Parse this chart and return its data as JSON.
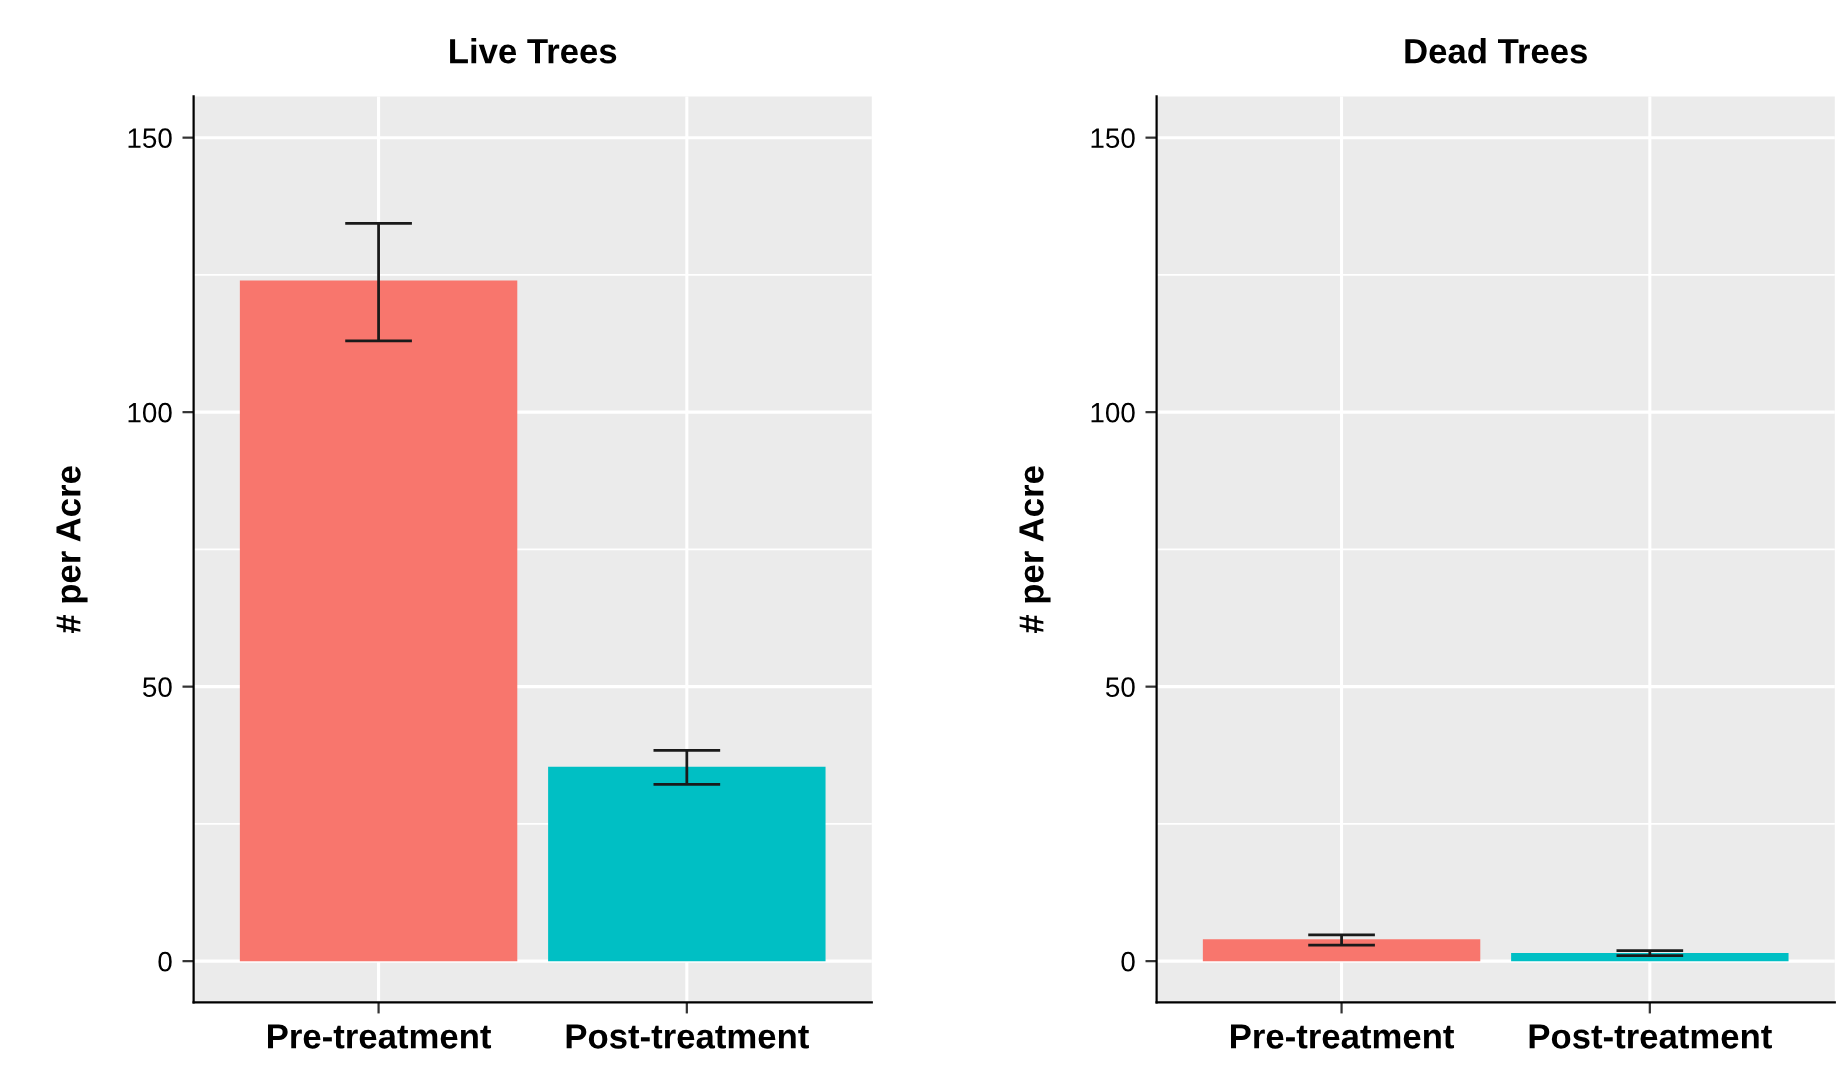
{
  "chart_data": [
    {
      "type": "bar",
      "title": "Live Trees",
      "ylabel": "# per Acre",
      "categories": [
        "Pre-treatment",
        "Post-treatment"
      ],
      "values": [
        124,
        35.4
      ],
      "colors": [
        "#f8766d",
        "#00bfc4"
      ],
      "errors": [
        [
          113,
          134.4
        ],
        [
          32.2,
          38.4
        ]
      ],
      "ylim": [
        -7.5,
        157.5
      ],
      "yticks": [
        0,
        {
          "value": 25,
          "label": null
        },
        50,
        {
          "value": 75,
          "label": null
        },
        100,
        {
          "value": 125,
          "label": null
        },
        150
      ],
      "grid": true
    },
    {
      "type": "bar",
      "title": "Dead Trees",
      "ylabel": "# per Acre",
      "categories": [
        "Pre-treatment",
        "Post-treatment"
      ],
      "values": [
        4.0,
        1.5
      ],
      "colors": [
        "#f8766d",
        "#00bfc4"
      ],
      "errors": [
        [
          2.9,
          4.8
        ],
        [
          1.0,
          1.9
        ]
      ],
      "ylim": [
        -7.5,
        157.5
      ],
      "yticks": [
        0,
        {
          "value": 25,
          "label": null
        },
        50,
        {
          "value": 75,
          "label": null
        },
        100,
        {
          "value": 125,
          "label": null
        },
        150
      ],
      "grid": true
    }
  ]
}
